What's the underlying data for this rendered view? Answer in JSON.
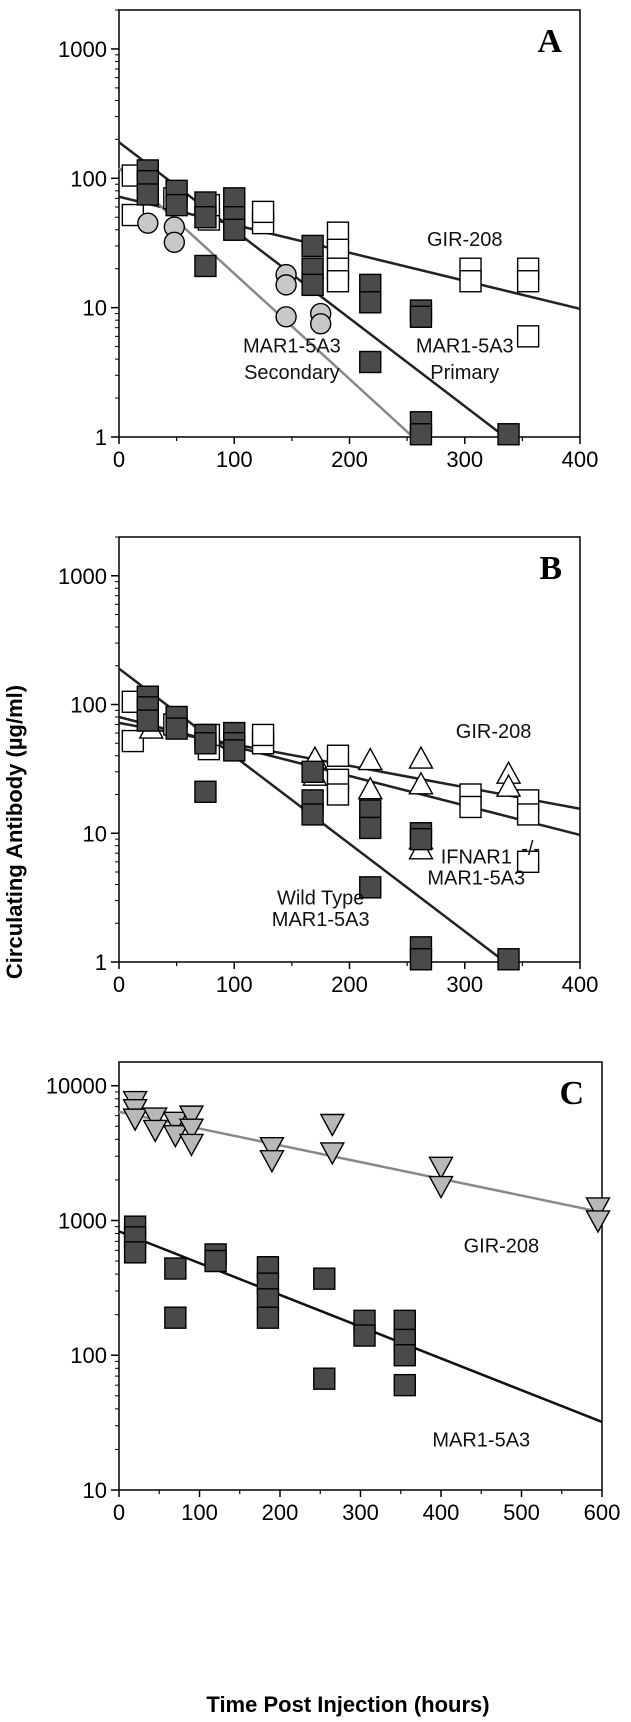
{
  "figure": {
    "ylabel": "Circulating Antibody (µg/ml)",
    "xlabel": "Time Post Injection (hours)"
  },
  "chart_data": [
    {
      "type": "scatter",
      "panel": "A",
      "xlim": [
        0,
        400
      ],
      "ylim": [
        1,
        2000
      ],
      "yscale": "log",
      "xticks": [
        "0",
        "100",
        "200",
        "300",
        "400"
      ],
      "yticks": [
        "1",
        "10",
        "100",
        "1000"
      ],
      "labels": [
        {
          "text": "GIR-208",
          "x": 300,
          "y": 30
        },
        {
          "text": "MAR1-5A3",
          "x": 150,
          "y": 4.5
        },
        {
          "text": "Secondary",
          "x": 150,
          "y": 2.8
        },
        {
          "text": "MAR1-5A3",
          "x": 300,
          "y": 4.5
        },
        {
          "text": "Primary",
          "x": 300,
          "y": 2.8
        }
      ],
      "series": [
        {
          "marker": "square-open",
          "color": "#ffffff",
          "points": [
            [
              12,
              105
            ],
            [
              12,
              52
            ],
            [
              48,
              70
            ],
            [
              78,
              48
            ],
            [
              78,
              62
            ],
            [
              125,
              45
            ],
            [
              125,
              55
            ],
            [
              190,
              38
            ],
            [
              190,
              28
            ],
            [
              190,
              20
            ],
            [
              190,
              16
            ],
            [
              305,
              20
            ],
            [
              305,
              16
            ],
            [
              355,
              20
            ],
            [
              355,
              16
            ],
            [
              355,
              6
            ]
          ]
        },
        {
          "marker": "square-filled",
          "color": "#4a4a4a",
          "points": [
            [
              25,
              115
            ],
            [
              25,
              95
            ],
            [
              25,
              75
            ],
            [
              50,
              80
            ],
            [
              50,
              62
            ],
            [
              75,
              65
            ],
            [
              75,
              50
            ],
            [
              75,
              21
            ],
            [
              100,
              70
            ],
            [
              100,
              50
            ],
            [
              100,
              40
            ],
            [
              168,
              30
            ],
            [
              168,
              20
            ],
            [
              168,
              15
            ],
            [
              218,
              15
            ],
            [
              218,
              11
            ],
            [
              218,
              3.8
            ],
            [
              262,
              9.5
            ],
            [
              262,
              8.5
            ],
            [
              262,
              1.3
            ],
            [
              262,
              1.05
            ],
            [
              338,
              1.05
            ]
          ]
        },
        {
          "marker": "circle-filled",
          "color": "#c8c8c8",
          "points": [
            [
              25,
              45
            ],
            [
              48,
              42
            ],
            [
              48,
              32
            ],
            [
              145,
              18
            ],
            [
              145,
              15
            ],
            [
              145,
              8.5
            ],
            [
              175,
              9
            ],
            [
              175,
              7.5
            ]
          ]
        }
      ],
      "lines": [
        {
          "label": "GIR-208",
          "color": "#222222",
          "x": [
            0,
            400
          ],
          "y": [
            72,
            9.8
          ]
        },
        {
          "label": "MAR1-5A3 Primary",
          "color": "#222222",
          "x": [
            0,
            335
          ],
          "y": [
            190,
            1
          ]
        },
        {
          "label": "MAR1-5A3 Secondary",
          "color": "#888888",
          "x": [
            0,
            255
          ],
          "y": [
            120,
            1
          ]
        }
      ]
    },
    {
      "type": "scatter",
      "panel": "B",
      "xlim": [
        0,
        400
      ],
      "ylim": [
        1,
        2000
      ],
      "yscale": "log",
      "xticks": [
        "0",
        "100",
        "200",
        "300",
        "400"
      ],
      "yticks": [
        "1",
        "10",
        "100",
        "1000"
      ],
      "labels": [
        {
          "text": "GIR-208",
          "x": 325,
          "y": 55
        },
        {
          "text": "IFNAR1",
          "x": 310,
          "y": 5.8
        },
        {
          "text": "-/-",
          "x": 349,
          "y": 6.8
        },
        {
          "text": "MAR1-5A3",
          "x": 310,
          "y": 4.0
        },
        {
          "text": "Wild Type",
          "x": 175,
          "y": 2.8
        },
        {
          "text": "MAR1-5A3",
          "x": 175,
          "y": 1.9
        }
      ],
      "series": [
        {
          "marker": "square-open",
          "color": "#ffffff",
          "points": [
            [
              12,
              105
            ],
            [
              12,
              52
            ],
            [
              48,
              70
            ],
            [
              78,
              45
            ],
            [
              78,
              58
            ],
            [
              125,
              50
            ],
            [
              125,
              58
            ],
            [
              190,
              40
            ],
            [
              190,
              26
            ],
            [
              190,
              20
            ],
            [
              305,
              20
            ],
            [
              305,
              16
            ],
            [
              355,
              18
            ],
            [
              355,
              14
            ],
            [
              355,
              6
            ]
          ]
        },
        {
          "marker": "triangle-open",
          "color": "#ffffff",
          "points": [
            [
              28,
              65
            ],
            [
              170,
              38
            ],
            [
              170,
              28
            ],
            [
              218,
              37
            ],
            [
              218,
              22
            ],
            [
              262,
              38
            ],
            [
              262,
              24
            ],
            [
              262,
              9
            ],
            [
              262,
              7.5
            ],
            [
              338,
              29
            ],
            [
              338,
              23
            ]
          ]
        },
        {
          "marker": "square-filled",
          "color": "#4a4a4a",
          "points": [
            [
              25,
              115
            ],
            [
              25,
              95
            ],
            [
              25,
              75
            ],
            [
              50,
              80
            ],
            [
              50,
              65
            ],
            [
              75,
              58
            ],
            [
              75,
              50
            ],
            [
              75,
              21
            ],
            [
              100,
              60
            ],
            [
              100,
              50
            ],
            [
              100,
              44
            ],
            [
              168,
              30
            ],
            [
              168,
              18
            ],
            [
              168,
              14
            ],
            [
              218,
              15
            ],
            [
              218,
              11
            ],
            [
              218,
              3.8
            ],
            [
              262,
              10
            ],
            [
              262,
              9
            ],
            [
              262,
              1.3
            ],
            [
              262,
              1.05
            ],
            [
              338,
              1.05
            ]
          ]
        }
      ],
      "lines": [
        {
          "label": "GIR-208",
          "color": "#222222",
          "x": [
            0,
            400
          ],
          "y": [
            72,
            15.5
          ]
        },
        {
          "label": "IFNAR1-/- MAR1-5A3",
          "color": "#222222",
          "x": [
            0,
            400
          ],
          "y": [
            80,
            9.7
          ]
        },
        {
          "label": "Wild Type MAR1-5A3",
          "color": "#222222",
          "x": [
            0,
            335
          ],
          "y": [
            190,
            1
          ]
        }
      ]
    },
    {
      "type": "scatter",
      "panel": "C",
      "xlim": [
        0,
        600
      ],
      "ylim": [
        10,
        15000
      ],
      "yscale": "log",
      "xticks": [
        "0",
        "100",
        "200",
        "300",
        "400",
        "500",
        "600"
      ],
      "yticks": [
        "10",
        "100",
        "1000",
        "10000"
      ],
      "labels": [
        {
          "text": "GIR-208",
          "x": 475,
          "y": 580
        },
        {
          "text": "MAR1-5A3",
          "x": 450,
          "y": 21
        }
      ],
      "series": [
        {
          "marker": "triangle-down-filled",
          "color": "#b8b8b8",
          "points": [
            [
              20,
              7700
            ],
            [
              20,
              6700
            ],
            [
              20,
              5700
            ],
            [
              45,
              5800
            ],
            [
              45,
              4700
            ],
            [
              70,
              5400
            ],
            [
              70,
              4300
            ],
            [
              90,
              6000
            ],
            [
              90,
              4800
            ],
            [
              90,
              3700
            ],
            [
              190,
              3500
            ],
            [
              190,
              2800
            ],
            [
              265,
              5200
            ],
            [
              265,
              3200
            ],
            [
              400,
              2500
            ],
            [
              400,
              1800
            ],
            [
              595,
              1250
            ],
            [
              595,
              1000
            ]
          ]
        },
        {
          "marker": "square-filled",
          "color": "#4a4a4a",
          "points": [
            [
              20,
              900
            ],
            [
              20,
              750
            ],
            [
              20,
              580
            ],
            [
              70,
              440
            ],
            [
              70,
              190
            ],
            [
              120,
              560
            ],
            [
              120,
              500
            ],
            [
              185,
              450
            ],
            [
              185,
              340
            ],
            [
              185,
              260
            ],
            [
              185,
              190
            ],
            [
              255,
              370
            ],
            [
              255,
              67
            ],
            [
              305,
              180
            ],
            [
              305,
              140
            ],
            [
              355,
              180
            ],
            [
              355,
              130
            ],
            [
              355,
              100
            ],
            [
              355,
              60
            ]
          ]
        }
      ],
      "lines": [
        {
          "label": "GIR-208",
          "color": "#888888",
          "x": [
            0,
            600
          ],
          "y": [
            6400,
            1150
          ]
        },
        {
          "label": "MAR1-5A3",
          "color": "#111111",
          "x": [
            0,
            600
          ],
          "y": [
            830,
            32
          ]
        }
      ]
    }
  ]
}
